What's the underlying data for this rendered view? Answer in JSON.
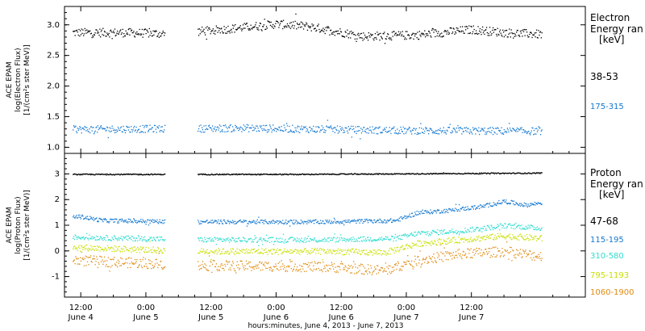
{
  "chart_data": [
    {
      "type": "scatter",
      "panel": "electron",
      "ylabel_lines": [
        "ACE EPAM",
        "log(Electron Flux)",
        "[1/(cm²s ster MeV)]"
      ],
      "ylim": [
        0.9,
        3.3
      ],
      "yticks": [
        1.0,
        1.5,
        2.0,
        2.5,
        3.0
      ],
      "ytick_labels": [
        "1.0",
        "1.5",
        "2.0",
        "2.5",
        "3.0"
      ],
      "legend_title": [
        "Electron",
        "Energy ran",
        "[keV]"
      ],
      "series": [
        {
          "name": "38-53",
          "color": "#000000",
          "baseline": 2.88,
          "spread": 0.07,
          "trend": [
            [
              0.0,
              2.88
            ],
            [
              8.0,
              2.88
            ],
            [
              16.0,
              2.86
            ],
            [
              26.0,
              2.93
            ],
            [
              36.0,
              3.02
            ],
            [
              42.0,
              2.98
            ],
            [
              52.0,
              2.82
            ],
            [
              62.0,
              2.84
            ],
            [
              72.0,
              2.93
            ],
            [
              78.0,
              2.88
            ],
            [
              85.0,
              2.85
            ]
          ]
        },
        {
          "name": "175-315",
          "color": "#1478d0",
          "baseline": 1.3,
          "spread": 0.06,
          "trend": [
            [
              0.0,
              1.3
            ],
            [
              30.0,
              1.32
            ],
            [
              60.0,
              1.28
            ],
            [
              85.0,
              1.27
            ]
          ]
        }
      ]
    },
    {
      "type": "scatter",
      "panel": "proton",
      "ylabel_lines": [
        "ACE EPAM",
        "log(Proton Flux)",
        "[1/(cm²s ster MeV)]"
      ],
      "ylim": [
        -1.8,
        3.8
      ],
      "yticks": [
        -1,
        0,
        1,
        2,
        3
      ],
      "ytick_labels": [
        "-1",
        "0",
        "1",
        "2",
        "3"
      ],
      "legend_title": [
        "Proton",
        "Energy ran",
        "[keV]"
      ],
      "series": [
        {
          "name": "47-68",
          "color": "#000000",
          "baseline": 3.0,
          "spread": 0.02,
          "trend": [
            [
              0.0,
              3.0
            ],
            [
              40.0,
              3.0
            ],
            [
              85.0,
              3.05
            ]
          ]
        },
        {
          "name": "115-195",
          "color": "#1478d0",
          "baseline": 1.2,
          "spread": 0.08,
          "trend": [
            [
              0.0,
              1.35
            ],
            [
              4.0,
              1.2
            ],
            [
              20.0,
              1.15
            ],
            [
              45.0,
              1.15
            ],
            [
              58.0,
              1.2
            ],
            [
              62.0,
              1.5
            ],
            [
              68.0,
              1.6
            ],
            [
              74.0,
              1.75
            ],
            [
              78.0,
              1.95
            ],
            [
              82.0,
              1.8
            ],
            [
              85.0,
              1.9
            ]
          ]
        },
        {
          "name": "310-580",
          "color": "#30dcd0",
          "baseline": 0.5,
          "spread": 0.1,
          "trend": [
            [
              0.0,
              0.55
            ],
            [
              20.0,
              0.45
            ],
            [
              45.0,
              0.45
            ],
            [
              58.0,
              0.5
            ],
            [
              62.0,
              0.7
            ],
            [
              70.0,
              0.8
            ],
            [
              78.0,
              1.0
            ],
            [
              85.0,
              0.9
            ]
          ]
        },
        {
          "name": "795-1193",
          "color": "#c8e000",
          "baseline": 0.1,
          "spread": 0.12,
          "trend": [
            [
              0.0,
              0.15
            ],
            [
              20.0,
              0.0
            ],
            [
              45.0,
              0.0
            ],
            [
              56.0,
              -0.05
            ],
            [
              62.0,
              0.3
            ],
            [
              70.0,
              0.45
            ],
            [
              78.0,
              0.6
            ],
            [
              85.0,
              0.5
            ]
          ]
        },
        {
          "name": "1060-1900",
          "color": "#e08a10",
          "baseline": -0.5,
          "spread": 0.2,
          "trend": [
            [
              0.0,
              -0.35
            ],
            [
              20.0,
              -0.55
            ],
            [
              45.0,
              -0.6
            ],
            [
              56.0,
              -0.75
            ],
            [
              62.0,
              -0.35
            ],
            [
              70.0,
              -0.1
            ],
            [
              78.0,
              0.0
            ],
            [
              85.0,
              -0.2
            ]
          ]
        }
      ]
    }
  ],
  "xaxis": {
    "tick_labels": [
      {
        "time": "12:00",
        "day": "June 4"
      },
      {
        "time": "0:00",
        "day": "June 5"
      },
      {
        "time": "12:00",
        "day": "June 5"
      },
      {
        "time": "0:00",
        "day": "June 6"
      },
      {
        "time": "12:00",
        "day": "June 6"
      },
      {
        "time": "0:00",
        "day": "June 7"
      },
      {
        "time": "12:00",
        "day": "June 7"
      }
    ],
    "xlim_hours": [
      -3,
      93
    ],
    "tick_hours": [
      0,
      12,
      24,
      36,
      48,
      60,
      72
    ],
    "data_gap_hours": [
      15.5,
      21.5
    ],
    "xlabel": "hours:minutes, June  4, 2013 - June  7, 2013"
  }
}
